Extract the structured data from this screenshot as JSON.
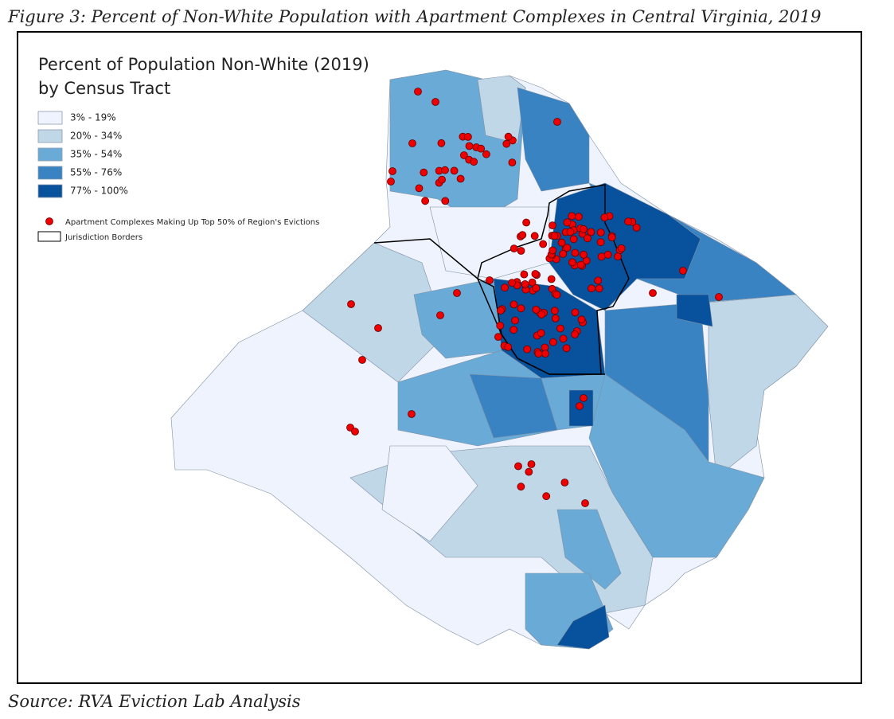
{
  "figure": {
    "caption": "Figure 3: Percent of Non-White Population with Apartment Complexes in Central Virginia, 2019",
    "source": "Source: RVA Eviction Lab Analysis"
  },
  "legend": {
    "title": [
      "Percent of Population Non-White (2019)",
      "by Census Tract"
    ],
    "classes": [
      {
        "label": "3% - 19%",
        "color": "#eef3fd"
      },
      {
        "label": "20% - 34%",
        "color": "#c0d7e8"
      },
      {
        "label": "35% - 54%",
        "color": "#6aaad6"
      },
      {
        "label": "55% - 76%",
        "color": "#3a83c2"
      },
      {
        "label": "77% - 100%",
        "color": "#08519c"
      }
    ],
    "points": "Apartment Complexes Making Up Top 50% of Region's Evictions",
    "borders": "Jurisdiction Borders"
  }
}
